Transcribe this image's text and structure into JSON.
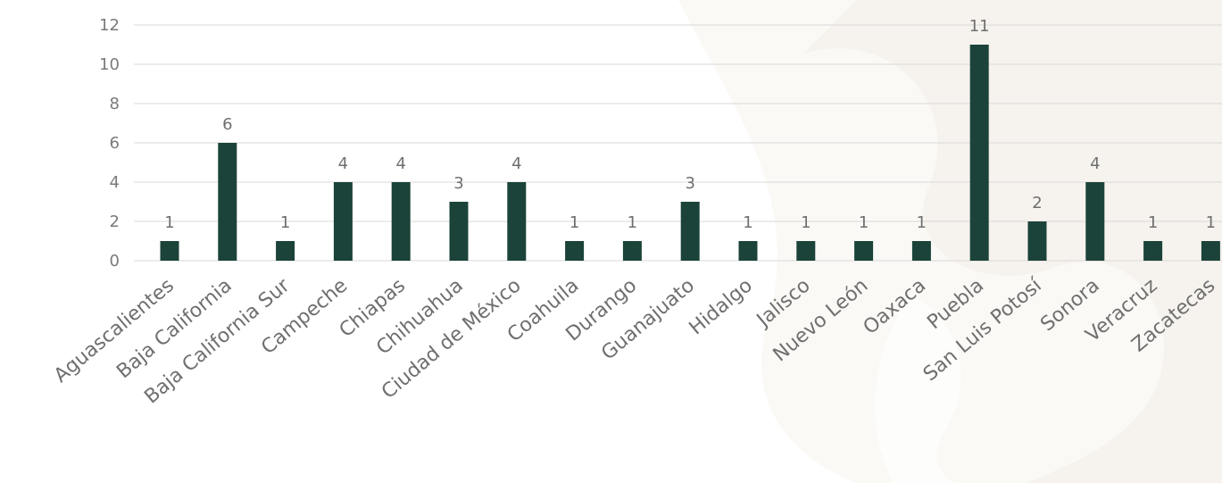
{
  "chart_data": {
    "type": "bar",
    "title": "",
    "xlabel": "",
    "ylabel": "",
    "ylim": [
      0,
      12
    ],
    "yticks": [
      0,
      2,
      4,
      6,
      8,
      10,
      12
    ],
    "grid": "horizontal",
    "categories": [
      "Aguascalientes",
      "Baja California",
      "Baja California Sur",
      "Campeche",
      "Chiapas",
      "Chihuahua",
      "Ciudad de México",
      "Coahuila",
      "Durango",
      "Guanajuato",
      "Hidalgo",
      "Jalisco",
      "Nuevo León",
      "Oaxaca",
      "Puebla",
      "San Luis Potosí",
      "Sonora",
      "Veracruz",
      "Zacatecas"
    ],
    "values": [
      1,
      6,
      1,
      4,
      4,
      3,
      4,
      1,
      1,
      3,
      1,
      1,
      1,
      1,
      11,
      2,
      4,
      1,
      1
    ]
  },
  "colors": {
    "bar": "#1b4339",
    "grid": "#d9d9d9",
    "background_pattern": "#f3ede6"
  }
}
